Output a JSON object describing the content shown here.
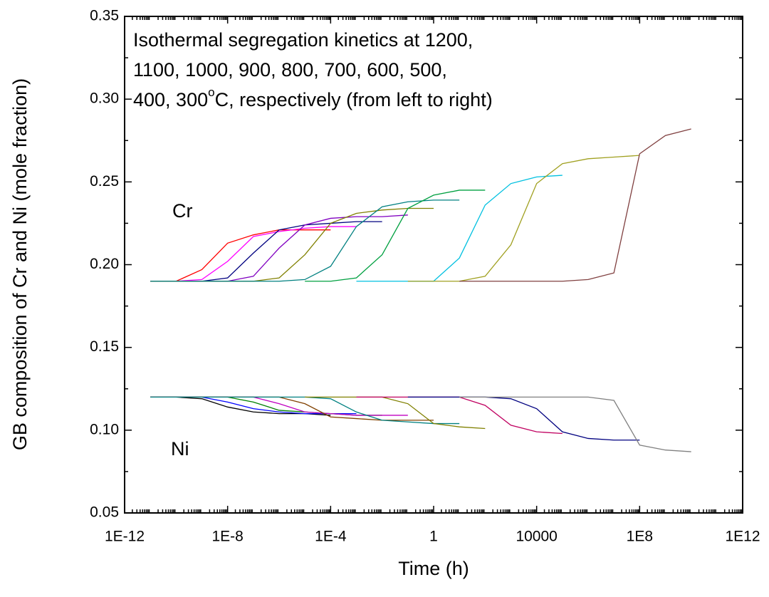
{
  "chart_data": {
    "type": "line",
    "log_x": true,
    "minor_ticks": true,
    "xlabel": "Time (h)",
    "ylabel": "GB composition of Cr and Ni (mole fraction)",
    "annotation": [
      "Isothermal segregation kinetics at 1200,",
      "1100, 1000, 900, 800, 700, 600, 500,",
      [
        "400, 300",
        "o",
        "C, respectively (from left to right)"
      ]
    ],
    "labels": [
      "Cr",
      "Ni"
    ],
    "xlim": [
      1e-12,
      1000000000000.0
    ],
    "xticks": [
      {
        "value": 1e-12,
        "label": "1E-12"
      },
      {
        "value": 1e-08,
        "label": "1E-8"
      },
      {
        "value": 0.0001,
        "label": "1E-4"
      },
      1,
      10000,
      {
        "value": 100000000.0,
        "label": "1E8"
      },
      {
        "value": 1000000000000.0,
        "label": "1E12"
      }
    ],
    "ylim": [
      0.05,
      0.35
    ],
    "yticks": [
      0.05,
      {
        "value": 0.1,
        "label": "0.10"
      },
      0.15,
      {
        "value": 0.2,
        "label": "0.20"
      },
      0.25,
      {
        "value": 0.3,
        "label": "0.30"
      },
      0.35
    ],
    "x": [
      1e-11,
      1e-10,
      1e-09,
      1e-08,
      1e-07,
      1e-06,
      1e-05,
      0.0001,
      0.001,
      0.01,
      0.1,
      1,
      10,
      100,
      1000,
      10000,
      100000.0,
      1000000.0,
      10000000.0,
      100000000.0,
      1000000000.0,
      10000000000.0
    ],
    "series": [
      {
        "color": "#ff0000",
        "values": [
          0.19,
          0.19,
          0.197,
          0.213,
          0.218,
          0.221,
          0.221,
          0.221,
          null,
          null,
          null,
          null,
          null,
          null,
          null,
          null,
          null,
          null,
          null,
          null,
          null,
          null
        ]
      },
      {
        "color": "#ff00ff",
        "values": [
          0.19,
          0.19,
          0.191,
          0.202,
          0.217,
          0.22,
          0.222,
          0.223,
          0.223,
          null,
          null,
          null,
          null,
          null,
          null,
          null,
          null,
          null,
          null,
          null,
          null,
          null
        ]
      },
      {
        "color": "#000080",
        "values": [
          0.19,
          0.19,
          0.19,
          0.192,
          0.207,
          0.221,
          0.224,
          0.225,
          0.226,
          0.226,
          null,
          null,
          null,
          null,
          null,
          null,
          null,
          null,
          null,
          null,
          null,
          null
        ]
      },
      {
        "color": "#8000c0",
        "values": [
          0.19,
          0.19,
          0.19,
          0.19,
          0.193,
          0.21,
          0.224,
          0.228,
          0.229,
          0.229,
          0.23,
          null,
          null,
          null,
          null,
          null,
          null,
          null,
          null,
          null,
          null,
          null
        ]
      },
      {
        "color": "#808000",
        "values": [
          0.19,
          0.19,
          0.19,
          0.19,
          0.19,
          0.192,
          0.206,
          0.225,
          0.231,
          0.233,
          0.234,
          0.234,
          null,
          null,
          null,
          null,
          null,
          null,
          null,
          null,
          null,
          null
        ]
      },
      {
        "color": "#008080",
        "values": [
          0.19,
          0.19,
          0.19,
          0.19,
          0.19,
          0.19,
          0.191,
          0.199,
          0.223,
          0.235,
          0.238,
          0.239,
          0.239,
          null,
          null,
          null,
          null,
          null,
          null,
          null,
          null,
          null
        ]
      },
      {
        "color": "#00a040",
        "values": [
          null,
          null,
          null,
          null,
          null,
          null,
          0.19,
          0.19,
          0.192,
          0.206,
          0.234,
          0.242,
          0.245,
          0.245,
          null,
          null,
          null,
          null,
          null,
          null,
          null,
          null
        ]
      },
      {
        "color": "#00c0e0",
        "values": [
          null,
          null,
          null,
          null,
          null,
          null,
          null,
          null,
          0.19,
          0.19,
          0.19,
          0.19,
          0.204,
          0.236,
          0.249,
          0.253,
          0.254,
          null,
          null,
          null,
          null,
          null
        ]
      },
      {
        "color": "#a0a020",
        "values": [
          null,
          null,
          null,
          null,
          null,
          null,
          null,
          null,
          null,
          null,
          0.19,
          0.19,
          0.19,
          0.193,
          0.212,
          0.249,
          0.261,
          0.264,
          0.265,
          0.266,
          null,
          null
        ]
      },
      {
        "color": "#804040",
        "values": [
          null,
          null,
          null,
          null,
          null,
          null,
          null,
          null,
          null,
          null,
          null,
          null,
          0.19,
          0.19,
          0.19,
          0.19,
          0.19,
          0.191,
          0.195,
          0.267,
          0.278,
          0.282
        ]
      },
      {
        "color": "#000000",
        "values": [
          0.12,
          0.12,
          0.119,
          0.114,
          0.111,
          0.11,
          0.11,
          0.109,
          null,
          null,
          null,
          null,
          null,
          null,
          null,
          null,
          null,
          null,
          null,
          null,
          null,
          null
        ]
      },
      {
        "color": "#0000ff",
        "values": [
          0.12,
          0.12,
          0.12,
          0.117,
          0.113,
          0.111,
          0.11,
          0.11,
          0.11,
          null,
          null,
          null,
          null,
          null,
          null,
          null,
          null,
          null,
          null,
          null,
          null,
          null
        ]
      },
      {
        "color": "#008000",
        "values": [
          0.12,
          0.12,
          0.12,
          0.12,
          0.117,
          0.112,
          0.111,
          0.11,
          0.109,
          0.109,
          null,
          null,
          null,
          null,
          null,
          null,
          null,
          null,
          null,
          null,
          null,
          null
        ]
      },
      {
        "color": "#c000c0",
        "values": [
          0.12,
          0.12,
          0.12,
          0.12,
          0.12,
          0.116,
          0.111,
          0.11,
          0.109,
          0.109,
          0.109,
          null,
          null,
          null,
          null,
          null,
          null,
          null,
          null,
          null,
          null,
          null
        ]
      },
      {
        "color": "#804000",
        "values": [
          0.12,
          0.12,
          0.12,
          0.12,
          0.12,
          0.12,
          0.116,
          0.108,
          0.107,
          0.106,
          0.106,
          0.106,
          null,
          null,
          null,
          null,
          null,
          null,
          null,
          null,
          null,
          null
        ]
      },
      {
        "color": "#008080",
        "values": [
          0.12,
          0.12,
          0.12,
          0.12,
          0.12,
          0.12,
          0.12,
          0.119,
          0.111,
          0.106,
          0.105,
          0.104,
          0.104,
          null,
          null,
          null,
          null,
          null,
          null,
          null,
          null,
          null
        ]
      },
      {
        "color": "#808000",
        "values": [
          null,
          null,
          null,
          null,
          null,
          null,
          0.12,
          0.12,
          0.12,
          0.12,
          0.116,
          0.104,
          0.102,
          0.101,
          null,
          null,
          null,
          null,
          null,
          null,
          null,
          null
        ]
      },
      {
        "color": "#c00060",
        "values": [
          null,
          null,
          null,
          null,
          null,
          null,
          null,
          null,
          0.12,
          0.12,
          0.12,
          0.12,
          0.12,
          0.115,
          0.103,
          0.099,
          0.098,
          null,
          null,
          null,
          null,
          null
        ]
      },
      {
        "color": "#000080",
        "values": [
          null,
          null,
          null,
          null,
          null,
          null,
          null,
          null,
          null,
          null,
          0.12,
          0.12,
          0.12,
          0.12,
          0.119,
          0.113,
          0.099,
          0.095,
          0.094,
          0.094,
          null,
          null
        ]
      },
      {
        "color": "#808080",
        "values": [
          null,
          null,
          null,
          null,
          null,
          null,
          null,
          null,
          null,
          null,
          null,
          null,
          0.12,
          0.12,
          0.12,
          0.12,
          0.12,
          0.12,
          0.118,
          0.091,
          0.088,
          0.087
        ]
      }
    ]
  }
}
